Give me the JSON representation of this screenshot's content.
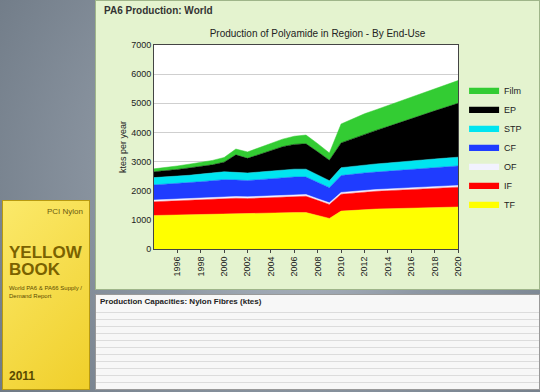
{
  "panel": {
    "title": "PA6 Production: World"
  },
  "chart_data": {
    "type": "area",
    "title": "Production of Polyamide in Region - By End-Use",
    "y_label": "ktes per year",
    "stacked": true,
    "grid": true,
    "legend": "right",
    "x": [
      1994,
      1995,
      1996,
      1997,
      1998,
      1999,
      2000,
      2001,
      2002,
      2003,
      2004,
      2005,
      2006,
      2007,
      2008,
      2009,
      2010,
      2011,
      2012,
      2013,
      2014,
      2015,
      2016,
      2017,
      2018,
      2019,
      2020
    ],
    "xlim": [
      1994,
      2020
    ],
    "xticks": [
      1996,
      1998,
      2000,
      2002,
      2004,
      2006,
      2008,
      2010,
      2012,
      2014,
      2016,
      2018,
      2020
    ],
    "ylim": [
      0,
      7000
    ],
    "yticks": [
      0,
      1000,
      2000,
      3000,
      4000,
      5000,
      6000,
      7000
    ],
    "series": [
      {
        "name": "TF",
        "color": "#ffff00",
        "values": [
          1150,
          1160,
          1170,
          1180,
          1190,
          1200,
          1210,
          1220,
          1210,
          1220,
          1230,
          1240,
          1250,
          1250,
          1150,
          1050,
          1300,
          1330,
          1350,
          1370,
          1380,
          1390,
          1400,
          1410,
          1420,
          1430,
          1440
        ]
      },
      {
        "name": "IF",
        "color": "#ff0000",
        "values": [
          470,
          480,
          490,
          500,
          510,
          520,
          530,
          520,
          520,
          530,
          540,
          550,
          560,
          560,
          520,
          480,
          580,
          590,
          600,
          610,
          620,
          630,
          640,
          650,
          660,
          670,
          680
        ]
      },
      {
        "name": "OF",
        "color": "#f2f2ff",
        "values": [
          60,
          60,
          60,
          60,
          60,
          60,
          60,
          60,
          60,
          60,
          60,
          60,
          60,
          60,
          55,
          55,
          60,
          60,
          60,
          60,
          60,
          60,
          60,
          60,
          60,
          60,
          60
        ]
      },
      {
        "name": "CF",
        "color": "#1f3cff",
        "values": [
          520,
          520,
          530,
          540,
          550,
          560,
          580,
          570,
          560,
          570,
          580,
          590,
          600,
          600,
          560,
          520,
          580,
          590,
          600,
          600,
          610,
          620,
          630,
          640,
          650,
          660,
          670
        ]
      },
      {
        "name": "STP",
        "color": "#00e5f0",
        "values": [
          250,
          250,
          250,
          250,
          260,
          260,
          270,
          260,
          260,
          260,
          270,
          270,
          270,
          270,
          250,
          240,
          270,
          270,
          280,
          280,
          280,
          290,
          290,
          290,
          300,
          300,
          300
        ]
      },
      {
        "name": "EP",
        "color": "#000000",
        "values": [
          200,
          210,
          230,
          250,
          270,
          290,
          330,
          600,
          500,
          600,
          700,
          800,
          850,
          870,
          800,
          700,
          850,
          950,
          1050,
          1150,
          1250,
          1350,
          1450,
          1550,
          1650,
          1750,
          1850
        ]
      },
      {
        "name": "Film",
        "color": "#33cc33",
        "values": [
          100,
          110,
          120,
          130,
          140,
          150,
          160,
          200,
          220,
          230,
          250,
          260,
          280,
          300,
          280,
          250,
          650,
          680,
          700,
          710,
          720,
          730,
          740,
          750,
          760,
          770,
          780
        ]
      }
    ]
  },
  "book": {
    "brand": "PCI Nylon",
    "title": "YELLOW BOOK",
    "subtitle": "World PA6 & PA66 Supply / Demand Report",
    "year": "2011"
  },
  "table": {
    "title": "Production Capacities: Nylon Fibres (ktes)"
  }
}
